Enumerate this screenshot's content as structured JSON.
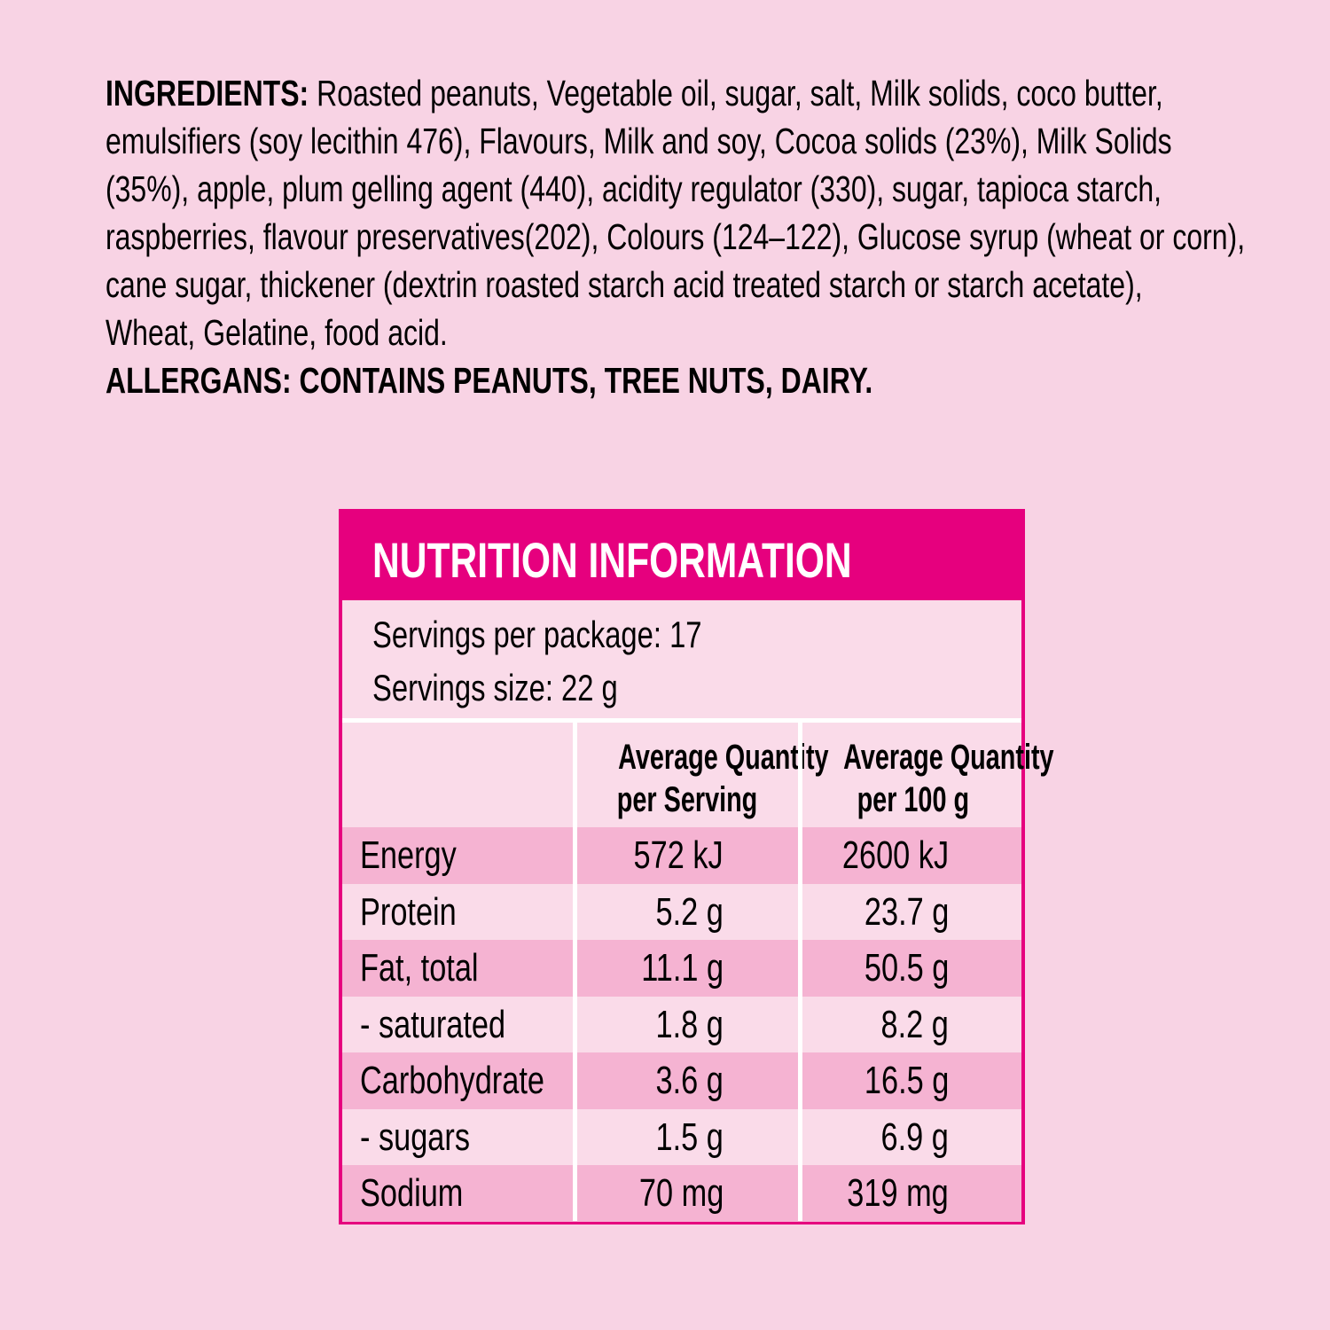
{
  "ingredients": {
    "label": "INGREDIENTS:",
    "lines": [
      " Roasted peanuts, Vegetable oil, sugar, salt, Milk solids, coco butter,",
      "emulsifiers (soy lecithin 476), Flavours, Milk and soy, Cocoa solids (23%), Milk Solids",
      "(35%), apple, plum gelling agent (440), acidity regulator (330), sugar, tapioca starch,",
      "raspberries, flavour preservatives(202), Colours (124–122), Glucose syrup (wheat or corn),",
      "cane sugar, thickener (dextrin roasted starch acid treated starch or starch acetate),",
      "Wheat, Gelatine, food acid."
    ],
    "allergens": "ALLERGANS: CONTAINS PEANUTS, TREE NUTS, DAIRY."
  },
  "nutrition": {
    "title": "NUTRITION INFORMATION",
    "servings_per_package": "Servings per package: 17",
    "serving_size": "Servings size: 22 g",
    "col_serving": [
      "Average Quantity",
      "per Serving"
    ],
    "col_100g": [
      "Average Quantity",
      "per 100 g"
    ],
    "rows": [
      {
        "name": "Energy",
        "serving": "572 kJ",
        "per100": "2600 kJ"
      },
      {
        "name": "Protein",
        "serving": "5.2 g",
        "per100": "23.7 g"
      },
      {
        "name": "Fat, total",
        "serving": "11.1 g",
        "per100": "50.5 g"
      },
      {
        "name": "- saturated",
        "serving": "1.8 g",
        "per100": "8.2 g"
      },
      {
        "name": "Carbohydrate",
        "serving": "3.6 g",
        "per100": "16.5 g"
      },
      {
        "name": "- sugars",
        "serving": "1.5 g",
        "per100": "6.9 g"
      },
      {
        "name": "Sodium",
        "serving": "70 mg",
        "per100": "319 mg"
      }
    ]
  },
  "colors": {
    "accent": "#e6007e",
    "background": "#f8d3e4",
    "row_dark": "#f5b3d2",
    "row_light": "#fadbe9"
  }
}
